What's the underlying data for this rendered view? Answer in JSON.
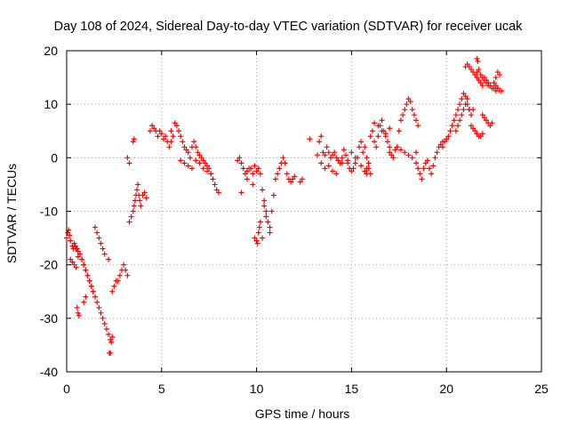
{
  "chart_data": {
    "type": "scatter",
    "title": "Day 108 of 2024, Sidereal Day-to-day VTEC variation (SDTVAR) for receiver ucak",
    "xlabel": "GPS time / hours",
    "ylabel": "SDTVAR / TECUs",
    "xlim": [
      0,
      25
    ],
    "ylim": [
      -40,
      20
    ],
    "xticks": [
      "0",
      "5",
      "10",
      "15",
      "20",
      "25"
    ],
    "yticks": [
      "-40",
      "-30",
      "-20",
      "-10",
      "0",
      "10",
      "20"
    ],
    "grid": true,
    "marker": "+",
    "color": "#ff0000",
    "series": [
      {
        "name": "SDTVAR",
        "x": [
          0.0,
          0.05,
          0.1,
          0.15,
          0.2,
          0.3,
          0.35,
          0.4,
          0.45,
          0.5,
          0.55,
          0.6,
          0.7,
          0.8,
          0.9,
          1.0,
          1.1,
          1.2,
          1.3,
          1.4,
          1.5,
          1.6,
          1.7,
          1.8,
          1.9,
          2.0,
          2.1,
          2.2,
          2.3,
          2.35,
          2.4,
          0.2,
          0.3,
          0.4,
          0.5,
          0.6,
          0.7,
          0.8,
          0.9,
          1.0,
          1.1,
          1.2,
          1.3,
          1.4,
          0.55,
          0.6,
          0.65,
          0.9,
          1.0,
          1.5,
          1.6,
          1.7,
          1.8,
          1.9,
          2.0,
          2.2,
          2.4,
          2.5,
          2.6,
          2.7,
          2.8,
          2.9,
          3.0,
          3.1,
          3.2,
          2.25,
          2.3,
          3.3,
          3.4,
          3.5,
          3.55,
          3.6,
          3.65,
          3.7,
          3.75,
          3.8,
          3.85,
          3.9,
          3.2,
          3.3,
          3.5,
          3.55,
          4.0,
          4.1,
          4.2,
          4.4,
          4.5,
          4.6,
          4.7,
          4.8,
          4.9,
          5.0,
          5.1,
          5.2,
          5.3,
          5.4,
          5.5,
          5.5,
          5.6,
          5.7,
          5.8,
          5.9,
          6.0,
          6.1,
          6.2,
          6.3,
          6.4,
          6.5,
          6.6,
          6.7,
          6.8,
          6.9,
          7.0,
          7.1,
          7.2,
          7.3,
          7.4,
          7.5,
          7.6,
          7.7,
          7.8,
          7.9,
          8.0,
          6.0,
          6.2,
          6.4,
          6.6,
          6.8,
          7.0,
          7.2,
          7.4,
          7.6,
          9.0,
          9.1,
          9.2,
          9.3,
          9.4,
          9.5,
          9.6,
          9.7,
          9.8,
          9.9,
          10.0,
          10.1,
          10.2,
          10.3,
          10.4,
          10.5,
          10.6,
          10.7,
          9.2,
          9.5,
          9.8,
          9.9,
          10.0,
          10.05,
          10.1,
          10.15,
          10.2,
          10.3,
          10.4,
          10.5,
          10.6,
          10.7,
          10.8,
          10.9,
          11.0,
          11.1,
          11.2,
          11.3,
          11.4,
          11.5,
          11.6,
          11.7,
          11.8,
          11.9,
          12.0,
          12.3,
          12.4,
          12.8,
          13.2,
          13.3,
          13.4,
          13.5,
          13.6,
          13.7,
          13.8,
          13.9,
          14.0,
          14.1,
          14.2,
          14.3,
          14.4,
          14.5,
          14.6,
          14.7,
          14.8,
          14.9,
          15.0,
          15.1,
          15.2,
          15.3,
          15.4,
          15.5,
          15.6,
          15.7,
          15.8,
          15.9,
          16.0,
          13.4,
          13.6,
          13.8,
          14.0,
          14.2,
          14.5,
          14.8,
          15.0,
          15.2,
          15.5,
          15.8,
          15.7,
          15.8,
          15.9,
          16.0,
          16.1,
          16.2,
          16.3,
          16.4,
          16.5,
          16.6,
          16.7,
          16.8,
          16.9,
          17.0,
          16.2,
          16.4,
          16.6,
          16.8,
          17.0,
          17.0,
          17.1,
          17.2,
          17.3,
          17.4,
          17.5,
          17.6,
          17.7,
          17.8,
          17.9,
          18.0,
          18.1,
          18.2,
          18.3,
          18.4,
          18.5,
          17.4,
          17.6,
          17.8,
          18.0,
          18.2,
          18.4,
          18.4,
          18.5,
          18.6,
          18.7,
          18.8,
          18.9,
          19.0,
          19.1,
          19.2,
          19.3,
          19.4,
          19.5,
          19.6,
          19.7,
          19.8,
          19.8,
          19.9,
          20.0,
          20.1,
          20.2,
          20.3,
          20.4,
          20.5,
          20.6,
          20.7,
          20.8,
          20.9,
          21.0,
          21.1,
          21.2,
          21.3,
          21.4,
          20.5,
          20.6,
          20.7,
          20.8,
          20.9,
          21.0,
          21.1,
          21.2,
          21.3,
          21.4,
          21.5,
          21.6,
          21.7,
          21.8,
          21.9,
          21.0,
          21.1,
          21.2,
          21.3,
          21.4,
          21.5,
          21.6,
          21.7,
          21.8,
          21.9,
          22.0,
          22.1,
          22.2,
          22.3,
          22.4,
          22.5,
          22.6,
          22.7,
          22.8,
          22.9,
          21.6,
          21.7,
          21.8,
          21.9,
          22.0,
          22.1,
          22.2,
          21.9,
          22.0,
          22.1,
          22.2,
          22.3,
          22.4,
          22.5,
          22.6,
          22.7,
          22.8,
          22.5,
          22.6,
          22.7,
          21.6,
          21.65
        ],
        "y": [
          -15,
          -14,
          -13.5,
          -14.5,
          -15.5,
          -16.5,
          -17,
          -16,
          -16.5,
          -17,
          -17,
          -17.5,
          -18,
          -19,
          -20,
          -21,
          -22,
          -23,
          -24,
          -25,
          -26,
          -27,
          -28,
          -29,
          -30,
          -31,
          -32,
          -33,
          -34,
          -34.5,
          -33.5,
          -19,
          -19.5,
          -20,
          -20.5,
          -18.5,
          -18,
          -19,
          -20,
          -21,
          -22,
          -23,
          -24,
          -25,
          -28,
          -29,
          -29.5,
          -27,
          -26,
          -13,
          -14,
          -15,
          -16,
          -17,
          -18,
          -19,
          -25,
          -24,
          -23,
          -23,
          -22,
          -21,
          -20,
          -21,
          -22,
          -36.5,
          -36.5,
          -12,
          -11,
          -10,
          -9,
          -8,
          -7,
          -6,
          -5,
          -7,
          -8,
          -9,
          0,
          -1,
          3,
          3.5,
          -7,
          -6.5,
          -7.5,
          5,
          6,
          5.5,
          5,
          4,
          5,
          4.5,
          3.5,
          4,
          3,
          2,
          3,
          5,
          4,
          6.5,
          6,
          5,
          4,
          3,
          2,
          1.5,
          1,
          0,
          2,
          3,
          2,
          1,
          0.5,
          0,
          -0.5,
          -1,
          -1.5,
          -2,
          -3,
          -4,
          -5,
          -6,
          -6.5,
          -0.5,
          -1,
          -1.5,
          -2,
          -0.5,
          -1,
          -2,
          -2.5,
          -3,
          -0.5,
          0,
          -1,
          -2,
          -3,
          -2.5,
          -2,
          -2,
          -3,
          -1.5,
          -2.5,
          -2,
          -3,
          -6,
          -8,
          -10,
          -12,
          -14,
          -6.5,
          -4,
          -5,
          -15,
          -15.5,
          -16,
          -14,
          -13,
          -12,
          -15,
          -9,
          -11,
          -12,
          -13,
          -10,
          -7,
          -4,
          -3,
          -2,
          -1,
          0,
          -1,
          -3,
          -4,
          -4.5,
          -4,
          -3.5,
          -4.5,
          -4,
          3.5,
          0.5,
          3,
          4,
          1,
          0.5,
          2,
          1,
          0,
          0.5,
          1,
          0,
          -0.5,
          -1,
          0,
          1.5,
          0.5,
          -1,
          -2,
          -2.5,
          -2,
          -1,
          0,
          2,
          3,
          1,
          2,
          0,
          -1,
          -3,
          -1,
          -2,
          -1.5,
          -2.5,
          -3,
          -1,
          -0.5,
          1,
          0,
          -1.5,
          -2,
          -2.5,
          -3,
          -2,
          4,
          5,
          3,
          2,
          4,
          6,
          7,
          5,
          4,
          3,
          2,
          6.5,
          6,
          5,
          4.5,
          5.5,
          1,
          0.5,
          0,
          1.5,
          2,
          5,
          7,
          8,
          9,
          10,
          11,
          10.5,
          9,
          8,
          7,
          6,
          2,
          1.5,
          1,
          0.5,
          0,
          1,
          -1,
          -2,
          -3,
          -4,
          -2,
          -1,
          -0.5,
          -2,
          -3,
          -1.5,
          0,
          1,
          2,
          2.5,
          3,
          2,
          3,
          3.5,
          4,
          5,
          6,
          7,
          8,
          9,
          10,
          11,
          12,
          11.5,
          10,
          9,
          8,
          9,
          5,
          6,
          7,
          8,
          9,
          10,
          11,
          9,
          6,
          5.5,
          5,
          4.5,
          4,
          4,
          4.5,
          17,
          17.5,
          17,
          16.5,
          16,
          15.5,
          15,
          14.5,
          14,
          13.5,
          15,
          14.5,
          14,
          13.5,
          13,
          14,
          13.5,
          13,
          12.5,
          12.5,
          16,
          16.5,
          15.5,
          15,
          14.5,
          14,
          13.5,
          8,
          7.5,
          7,
          6.5,
          6,
          6.5,
          14,
          15,
          16,
          15.5,
          13,
          12.5,
          13,
          18.5,
          18
        ]
      }
    ]
  }
}
